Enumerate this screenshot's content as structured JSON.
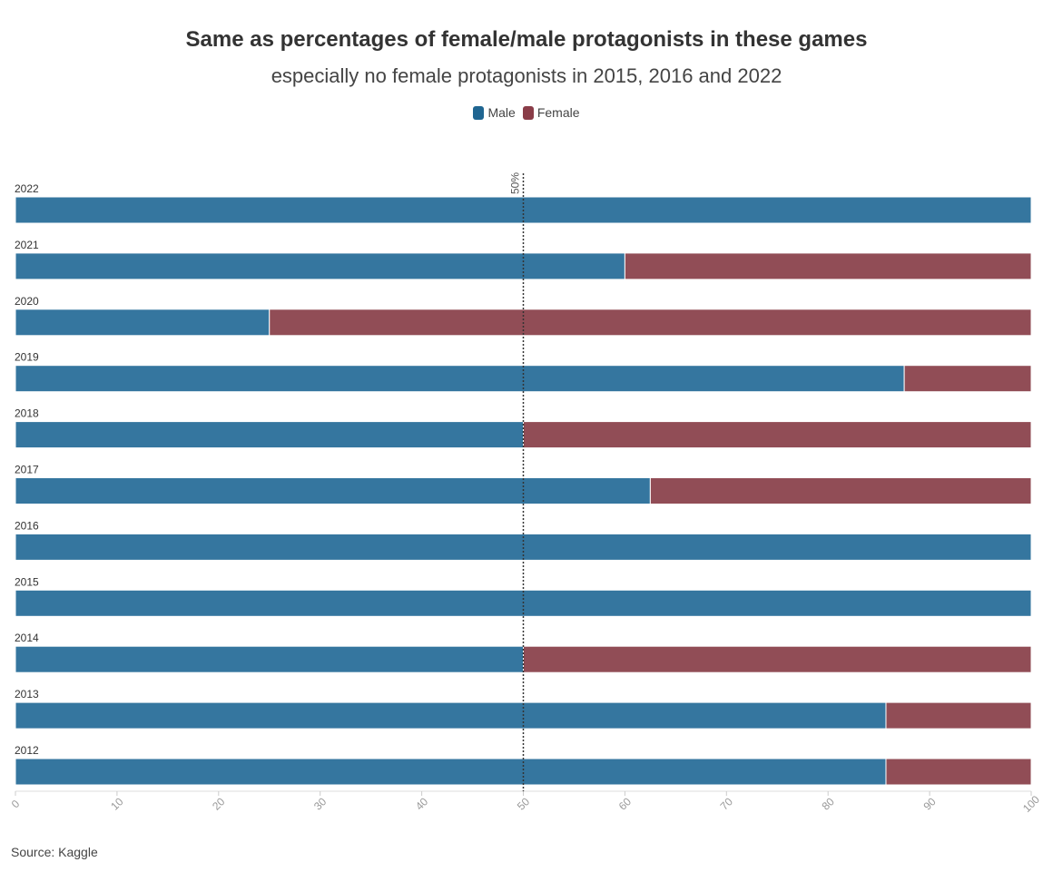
{
  "chart_data": {
    "type": "bar",
    "orientation": "horizontal",
    "stacked": true,
    "title": "Same as percentages of female/male protagonists in these games",
    "subtitle": "especially no female protagonists in 2015, 2016 and 2022",
    "categories": [
      "2022",
      "2021",
      "2020",
      "2019",
      "2018",
      "2017",
      "2016",
      "2015",
      "2014",
      "2013",
      "2012"
    ],
    "series": [
      {
        "name": "Male",
        "color": "#35769f",
        "values": [
          100,
          60,
          25,
          87.5,
          50,
          62.5,
          100,
          100,
          50,
          85.7,
          85.7
        ]
      },
      {
        "name": "Female",
        "color": "#914d56",
        "values": [
          0,
          40,
          75,
          12.5,
          50,
          37.5,
          0,
          0,
          50,
          14.3,
          14.3
        ]
      }
    ],
    "xlim": [
      0,
      100
    ],
    "xticks": [
      "0",
      "10",
      "20",
      "30",
      "40",
      "50",
      "60",
      "70",
      "80",
      "90",
      "100"
    ],
    "reference_line": {
      "value": 50,
      "label": "50%"
    },
    "legend_position": "top-center",
    "source": "Source: Kaggle"
  }
}
